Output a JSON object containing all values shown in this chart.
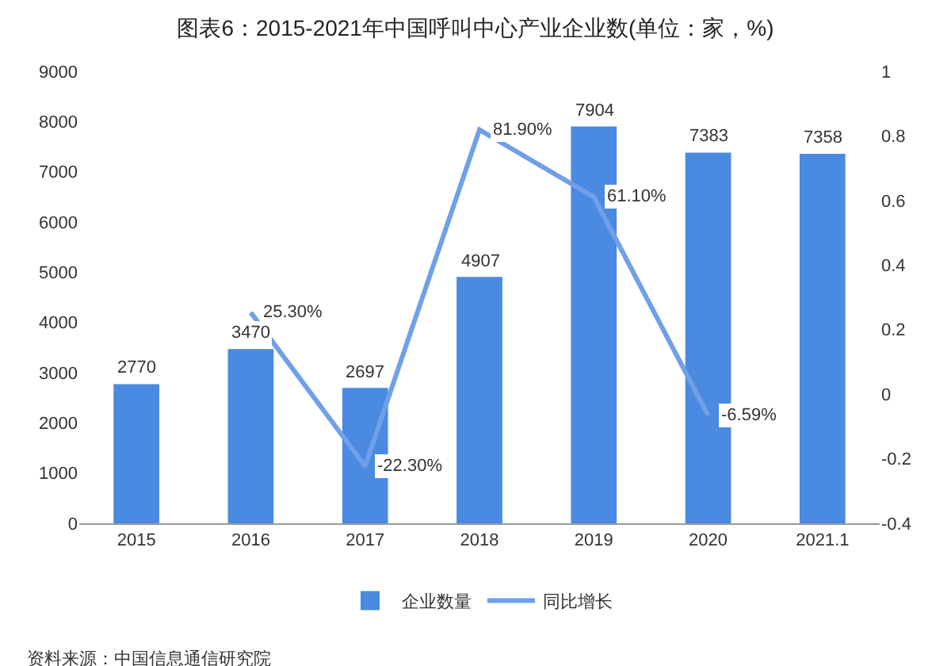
{
  "chart_data": {
    "type": "bar",
    "title": "图表6：2015-2021年中国呼叫中心产业企业数(单位：家，%)",
    "categories": [
      "2015",
      "2016",
      "2017",
      "2018",
      "2019",
      "2020",
      "2021.1"
    ],
    "series": [
      {
        "name": "企业数量",
        "color": "#4a8ae0",
        "values": [
          2770,
          3470,
          2697,
          4907,
          7904,
          7383,
          7358
        ],
        "value_labels": [
          "2770",
          "3470",
          "2697",
          "4907",
          "7904",
          "7383",
          "7358"
        ]
      },
      {
        "name": "同比增长",
        "type": "line",
        "axis": "y2",
        "color": "#6fa0e8",
        "values": [
          null,
          0.253,
          -0.223,
          0.819,
          0.611,
          -0.0659,
          null
        ],
        "value_labels": [
          null,
          "25.30%",
          "-22.30%",
          "81.90%",
          "61.10%",
          "-6.59%",
          null
        ]
      }
    ],
    "ylim": [
      0,
      9000
    ],
    "yticks": [
      0,
      1000,
      2000,
      3000,
      4000,
      5000,
      6000,
      7000,
      8000,
      9000
    ],
    "y2lim": [
      -0.4,
      1
    ],
    "y2ticks": [
      -0.4,
      -0.2,
      0,
      0.2,
      0.4,
      0.6,
      0.8,
      1
    ],
    "grid": false,
    "legend": "bottom",
    "marker": "none",
    "line_style": "solid",
    "annotations": [
      "资料来源：中国信息通信研究院"
    ]
  }
}
